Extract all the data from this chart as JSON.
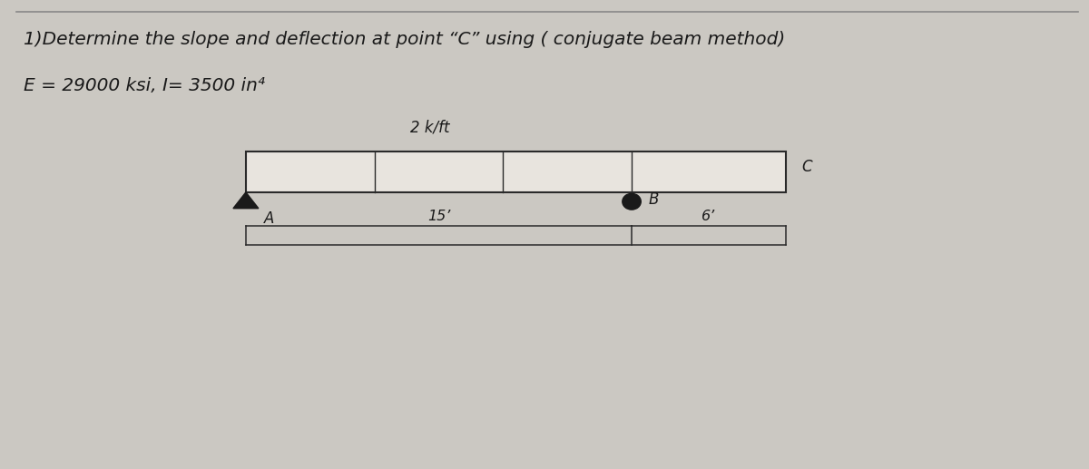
{
  "title_line1": "1)Determine the slope and deflection at point “C” using ( conjugate beam method)",
  "title_line2": "E = 29000 ksi, I= 3500 in⁴",
  "load_label": "2 k/ft",
  "span_AB_label": "15’",
  "span_BC_label": "6’",
  "point_A_label": "A",
  "point_B_label": "B",
  "point_C_label": "C",
  "bg_color": "#cbc8c2",
  "beam_color": "#2a2a2a",
  "text_color": "#1a1a1a",
  "beam_fill": "#e8e4de",
  "support_color": "#1a1a1a",
  "title_fontsize": 14.5,
  "fig_bg": "#cbc8c2"
}
